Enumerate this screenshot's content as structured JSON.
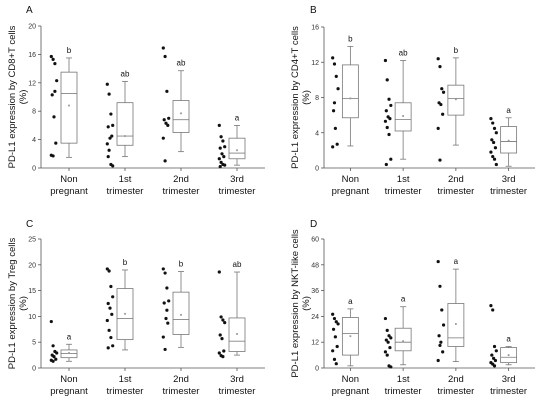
{
  "chart_data": [
    {
      "type": "box",
      "panel": "A",
      "ylabel": "PD-L1 expression by CD8+T cells\n(%)",
      "ylim": [
        0,
        20
      ],
      "yticks": [
        0,
        4,
        8,
        12,
        16,
        20
      ],
      "categories": [
        "Non\npregnant",
        "1st\ntrimester",
        "2nd\ntrimester",
        "3rd\ntrimester"
      ],
      "boxes": [
        {
          "min": 1.5,
          "q1": 3.5,
          "median": 10.5,
          "q3": 13.5,
          "max": 15.5,
          "mean": 8.8,
          "sig": "b",
          "points": [
            15.7,
            15.3,
            14.7,
            12.3,
            10.3,
            7.2,
            3.5,
            1.8,
            1.7,
            10.8
          ]
        },
        {
          "min": 1.6,
          "q1": 3.2,
          "median": 4.5,
          "q3": 9.2,
          "max": 12.2,
          "mean": 4.5,
          "sig": "ab",
          "points": [
            11.8,
            10.4,
            7.6,
            6.0,
            5.8,
            4.2,
            4.5,
            3.4,
            2.5,
            0.5,
            0.3,
            1.6
          ]
        },
        {
          "min": 2.3,
          "q1": 5.0,
          "median": 6.8,
          "q3": 9.5,
          "max": 13.7,
          "mean": 7.7,
          "sig": "ab",
          "points": [
            16.9,
            15.7,
            10.8,
            7.0,
            6.8,
            6.3,
            6.0,
            4.2,
            1.0
          ]
        },
        {
          "min": 0.4,
          "q1": 1.3,
          "median": 2.1,
          "q3": 4.2,
          "max": 6.0,
          "mean": 2.5,
          "sig": "a",
          "points": [
            6.0,
            4.4,
            3.8,
            3.0,
            2.8,
            2.0,
            1.6,
            1.3,
            0.8,
            0.5,
            0.4,
            0.2
          ]
        }
      ]
    },
    {
      "type": "box",
      "panel": "B",
      "ylabel": "PD-L1 expression by CD4+T cells\n(%)",
      "ylim": [
        0,
        16
      ],
      "yticks": [
        0,
        4,
        8,
        12,
        16
      ],
      "categories": [
        "Non\npregnant",
        "1st\ntrimester",
        "2nd\ntrimester",
        "3rd\ntrimester"
      ],
      "boxes": [
        {
          "min": 2.5,
          "q1": 5.7,
          "median": 7.9,
          "q3": 11.7,
          "max": 13.8,
          "mean": 7.9,
          "sig": "b",
          "points": [
            12.5,
            11.8,
            10.4,
            9.0,
            6.5,
            4.5,
            2.7,
            2.4,
            7.4
          ]
        },
        {
          "min": 1.0,
          "q1": 4.2,
          "median": 5.5,
          "q3": 7.4,
          "max": 12.2,
          "mean": 5.9,
          "sig": "ab",
          "points": [
            12.2,
            10.0,
            7.8,
            7.1,
            6.5,
            5.8,
            5.6,
            5.3,
            4.6,
            3.8,
            1.0,
            0.4
          ]
        },
        {
          "min": 2.6,
          "q1": 6.0,
          "median": 7.9,
          "q3": 9.4,
          "max": 12.5,
          "mean": 7.8,
          "sig": "b",
          "points": [
            12.4,
            11.5,
            9.0,
            8.6,
            7.4,
            7.2,
            6.1,
            4.5,
            0.9
          ]
        },
        {
          "min": 0.2,
          "q1": 1.7,
          "median": 3.0,
          "q3": 4.7,
          "max": 5.7,
          "mean": 3.1,
          "sig": "a",
          "points": [
            5.6,
            5.1,
            4.5,
            4.0,
            3.2,
            2.9,
            2.3,
            1.8,
            1.3,
            1.0,
            0.4
          ]
        }
      ]
    },
    {
      "type": "box",
      "panel": "C",
      "ylabel": "PD-L1 expression by Treg cells\n(%)",
      "ylim": [
        0,
        25
      ],
      "yticks": [
        0,
        5,
        10,
        15,
        20,
        25
      ],
      "categories": [
        "Non\npregnant",
        "1st\ntrimester",
        "2nd\ntrimester",
        "3rd\ntrimester"
      ],
      "boxes": [
        {
          "min": 1.3,
          "q1": 2.0,
          "median": 2.8,
          "q3": 3.5,
          "max": 4.6,
          "mean": 2.9,
          "sig": "a",
          "points": [
            9.0,
            4.3,
            3.2,
            2.9,
            2.5,
            2.2,
            1.7,
            1.5,
            1.3
          ]
        },
        {
          "min": 3.5,
          "q1": 5.5,
          "median": 9.6,
          "q3": 15.4,
          "max": 19.0,
          "mean": 10.5,
          "sig": "b",
          "points": [
            19.2,
            18.8,
            15.8,
            13.8,
            12.5,
            11.6,
            10.4,
            9.2,
            7.3,
            5.9,
            4.3,
            3.9
          ]
        },
        {
          "min": 4.0,
          "q1": 6.5,
          "median": 9.4,
          "q3": 14.7,
          "max": 18.7,
          "mean": 10.3,
          "sig": "b",
          "points": [
            19.2,
            18.4,
            15.5,
            13.0,
            12.6,
            9.6,
            8.7,
            6.0,
            3.6,
            11.2
          ]
        },
        {
          "min": 2.5,
          "q1": 3.2,
          "median": 5.2,
          "q3": 9.7,
          "max": 18.6,
          "mean": 6.6,
          "sig": "ab",
          "points": [
            18.6,
            9.9,
            9.3,
            8.8,
            6.4,
            5.7,
            3.3,
            2.9,
            2.4,
            2.2
          ]
        }
      ]
    },
    {
      "type": "box",
      "panel": "D",
      "ylabel": "PD-L1 expression by NKT-like cells\n(%)",
      "ylim": [
        0,
        60
      ],
      "yticks": [
        0,
        12,
        24,
        36,
        48,
        60
      ],
      "categories": [
        "Non\npregnant",
        "1st\ntrimester",
        "2nd\ntrimester",
        "3rd\ntrimester"
      ],
      "boxes": [
        {
          "min": 1.0,
          "q1": 6.0,
          "median": 16.0,
          "q3": 23.5,
          "max": 27.5,
          "mean": 14.8,
          "sig": "a",
          "points": [
            25.0,
            23.0,
            21.5,
            20.5,
            18.0,
            14.5,
            10.0,
            8.0,
            4.0,
            2.0
          ]
        },
        {
          "min": 1.5,
          "q1": 8.0,
          "median": 12.0,
          "q3": 18.5,
          "max": 28.5,
          "mean": 12.5,
          "sig": "a",
          "points": [
            23.0,
            17.5,
            15.0,
            14.0,
            13.0,
            12.0,
            9.5,
            7.5,
            6.0,
            1.0,
            0.5
          ]
        },
        {
          "min": 3.0,
          "q1": 10.0,
          "median": 14.0,
          "q3": 30.0,
          "max": 46.0,
          "mean": 20.5,
          "sig": "a",
          "points": [
            49.5,
            38.0,
            27.0,
            20.0,
            15.0,
            12.0,
            7.5,
            3.5,
            10.5
          ]
        },
        {
          "min": 1.5,
          "q1": 2.5,
          "median": 5.0,
          "q3": 9.5,
          "max": 10.0,
          "mean": 6.0,
          "sig": "a",
          "points": [
            29.0,
            27.0,
            10.0,
            8.0,
            6.0,
            4.5,
            3.5,
            2.5,
            1.8,
            1.0
          ]
        }
      ]
    }
  ]
}
